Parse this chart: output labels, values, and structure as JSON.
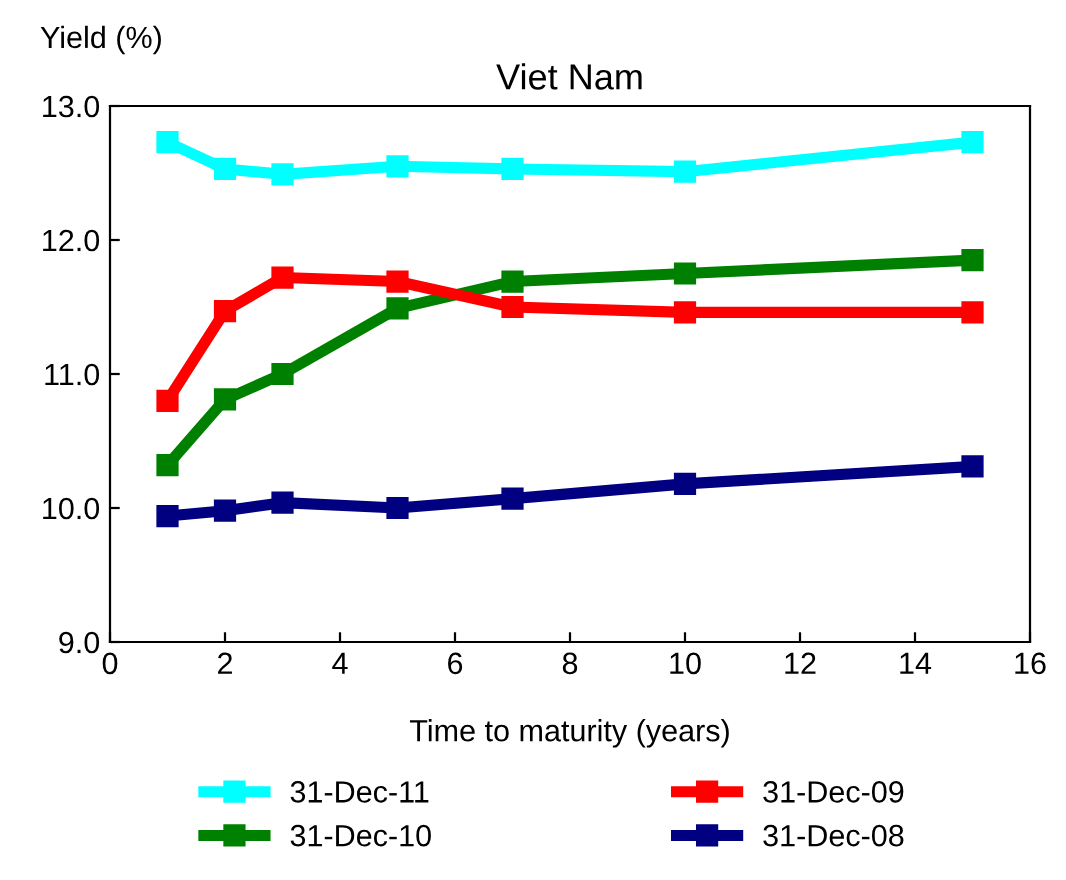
{
  "chart_data": {
    "type": "line",
    "title": "Viet Nam",
    "xlabel": "Time to maturity (years)",
    "ylabel": "Yield (%)",
    "x": [
      1,
      2,
      3,
      5,
      7,
      10,
      15
    ],
    "series": [
      {
        "name": "31-Dec-11",
        "color": "#00ffff",
        "values": [
          12.73,
          12.53,
          12.49,
          12.55,
          12.53,
          12.51,
          12.73
        ]
      },
      {
        "name": "31-Dec-10",
        "color": "#008000",
        "values": [
          10.32,
          10.81,
          11.0,
          11.49,
          11.69,
          11.75,
          11.85
        ]
      },
      {
        "name": "31-Dec-09",
        "color": "#ff0000",
        "values": [
          10.8,
          11.47,
          11.72,
          11.69,
          11.5,
          11.46,
          11.46
        ]
      },
      {
        "name": "31-Dec-08",
        "color": "#000080",
        "values": [
          9.94,
          9.98,
          10.04,
          10.0,
          10.07,
          10.18,
          10.31
        ]
      }
    ],
    "xlim": [
      0,
      16
    ],
    "xticks": [
      0,
      2,
      4,
      6,
      8,
      10,
      12,
      14,
      16
    ],
    "ylim": [
      9,
      13
    ],
    "yticks": [
      {
        "value": 9,
        "label": "9.0"
      },
      {
        "value": 10,
        "label": "10.0"
      },
      {
        "value": 11,
        "label": "11.0"
      },
      {
        "value": 12,
        "label": "12.0"
      },
      {
        "value": 13,
        "label": "13.0"
      }
    ],
    "marker": "square",
    "line_style": "solid",
    "grid": false,
    "legend": "bottom"
  }
}
